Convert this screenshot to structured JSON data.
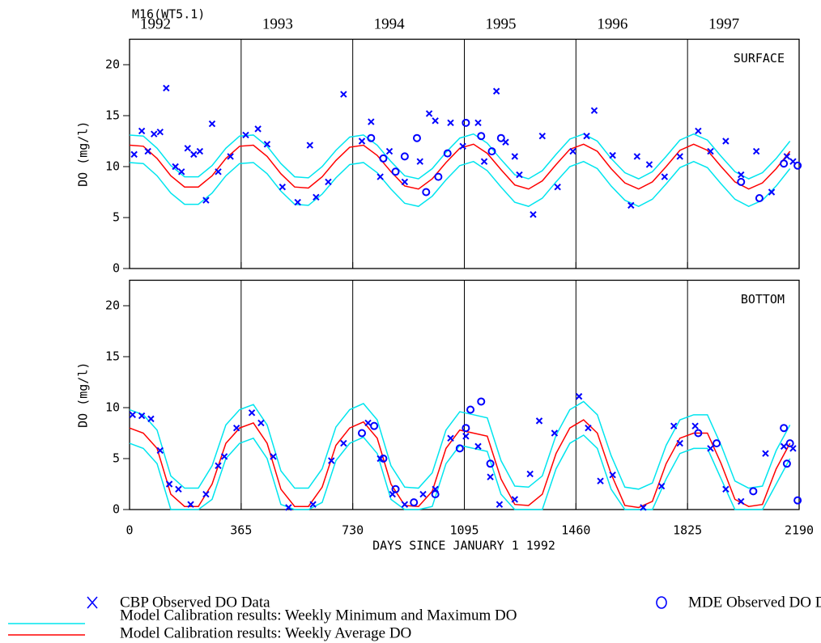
{
  "title": "M16(WT5.1)",
  "year_labels": [
    "1992",
    "1993",
    "1994",
    "1995",
    "1996",
    "1997"
  ],
  "x_label": "DAYS SINCE JANUARY 1 1992",
  "chart_data": [
    {
      "type": "line",
      "panel_label": "SURFACE",
      "y_label": "DO (mg/l)",
      "xlim": [
        0,
        2190
      ],
      "ylim": [
        0,
        22.5
      ],
      "yticks": [
        0,
        5,
        10,
        15,
        20
      ],
      "x": [
        0,
        45,
        90,
        135,
        180,
        225,
        270,
        315,
        360,
        405,
        450,
        495,
        540,
        585,
        630,
        675,
        720,
        765,
        810,
        855,
        900,
        945,
        990,
        1035,
        1080,
        1125,
        1170,
        1215,
        1260,
        1305,
        1350,
        1395,
        1440,
        1485,
        1530,
        1575,
        1620,
        1665,
        1710,
        1755,
        1800,
        1845,
        1890,
        1935,
        1980,
        2025,
        2070,
        2115,
        2160
      ],
      "series": [
        {
          "name": "Model Calibration results: Weekly Minimum and Maximum DO",
          "color": "#00e5ee",
          "values": [
            10.4,
            10.3,
            9.1,
            7.4,
            6.3,
            6.3,
            7.4,
            9.1,
            10.3,
            10.4,
            9.3,
            7.6,
            6.3,
            6.2,
            7.3,
            8.9,
            10.2,
            10.4,
            9.4,
            7.8,
            6.4,
            6.1,
            7.1,
            8.7,
            10.1,
            10.5,
            9.6,
            8.0,
            6.5,
            6.1,
            6.9,
            8.5,
            10.0,
            10.5,
            9.8,
            8.1,
            6.7,
            6.1,
            6.8,
            8.3,
            9.9,
            10.5,
            9.9,
            8.3,
            6.8,
            6.1,
            6.7,
            8.1,
            9.8
          ]
        },
        {
          "color": "#00e5ee",
          "values": [
            13.1,
            13.0,
            11.8,
            10.1,
            9.0,
            9.0,
            10.1,
            11.8,
            13.0,
            13.1,
            12.0,
            10.3,
            9.0,
            8.9,
            10.0,
            11.6,
            12.9,
            13.1,
            12.1,
            10.5,
            9.1,
            8.8,
            9.8,
            11.4,
            12.8,
            13.2,
            12.3,
            10.7,
            9.2,
            8.8,
            9.6,
            11.2,
            12.7,
            13.2,
            12.5,
            10.8,
            9.4,
            8.8,
            9.5,
            11.0,
            12.6,
            13.2,
            12.6,
            11.0,
            9.5,
            8.8,
            9.4,
            10.8,
            12.5
          ]
        },
        {
          "name": "Model Calibration results: Weekly Average DO",
          "color": "#ff0000",
          "values": [
            12.1,
            12.0,
            10.8,
            9.1,
            8.0,
            8.0,
            9.1,
            10.8,
            12.0,
            12.1,
            11.0,
            9.3,
            8.0,
            7.9,
            9.0,
            10.6,
            11.9,
            12.1,
            11.1,
            9.5,
            8.1,
            7.8,
            8.8,
            10.4,
            11.8,
            12.2,
            11.3,
            9.7,
            8.2,
            7.8,
            8.6,
            10.2,
            11.7,
            12.2,
            11.5,
            9.8,
            8.4,
            7.8,
            8.5,
            10.0,
            11.6,
            12.2,
            11.6,
            10.0,
            8.5,
            7.8,
            8.4,
            9.8,
            11.5
          ]
        },
        {
          "name": "CBP Observed DO Data",
          "color": "#0000ff",
          "marker": "x",
          "x": [
            15,
            40,
            60,
            80,
            100,
            120,
            150,
            170,
            190,
            210,
            230,
            250,
            270,
            290,
            330,
            380,
            420,
            450,
            500,
            550,
            590,
            610,
            650,
            700,
            760,
            790,
            820,
            850,
            900,
            950,
            980,
            1000,
            1050,
            1090,
            1140,
            1160,
            1200,
            1230,
            1260,
            1275,
            1320,
            1350,
            1400,
            1450,
            1495,
            1520,
            1580,
            1640,
            1660,
            1700,
            1750,
            1800,
            1860,
            1900,
            1950,
            2000,
            2050,
            2100,
            2150,
            2170
          ],
          "values": [
            11.2,
            13.5,
            11.5,
            13.2,
            13.4,
            17.7,
            10,
            9.5,
            11.8,
            11.2,
            11.5,
            6.7,
            14.2,
            9.5,
            11,
            13.1,
            13.7,
            12.2,
            8,
            6.5,
            12.1,
            7,
            8.5,
            17.1,
            12.5,
            14.4,
            9,
            11.5,
            8.5,
            10.5,
            15.2,
            14.5,
            14.3,
            12,
            14.3,
            10.5,
            17.4,
            12.4,
            11,
            9.2,
            5.3,
            13,
            8,
            11.5,
            13,
            15.5,
            11.1,
            6.2,
            11,
            10.2,
            9,
            11,
            13.5,
            11.5,
            12.5,
            9.2,
            11.5,
            7.5,
            11,
            10.5
          ]
        },
        {
          "name": "MDE Observed DO Data",
          "color": "#0000ff",
          "marker": "o",
          "x": [
            790,
            830,
            870,
            900,
            940,
            970,
            1010,
            1040,
            1100,
            1150,
            1185,
            1215,
            2000,
            2060,
            2140,
            2185
          ],
          "values": [
            12.8,
            10.8,
            9.5,
            11,
            12.8,
            7.5,
            9,
            11.3,
            14.3,
            13,
            11.5,
            12.8,
            8.5,
            6.9,
            10.3,
            10.1
          ]
        }
      ]
    },
    {
      "type": "line",
      "panel_label": "BOTTOM",
      "y_label": "DO (mg/l)",
      "xlim": [
        0,
        2190
      ],
      "ylim": [
        0,
        22.5
      ],
      "yticks": [
        0,
        5,
        10,
        15,
        20
      ],
      "xticks": [
        0,
        365,
        730,
        1095,
        1460,
        1825,
        2190
      ],
      "x": [
        0,
        45,
        90,
        135,
        180,
        225,
        270,
        315,
        360,
        405,
        450,
        495,
        540,
        585,
        630,
        675,
        720,
        765,
        810,
        855,
        900,
        945,
        990,
        1035,
        1080,
        1125,
        1170,
        1215,
        1260,
        1305,
        1350,
        1395,
        1440,
        1485,
        1530,
        1575,
        1620,
        1665,
        1710,
        1755,
        1800,
        1845,
        1890,
        1935,
        1980,
        2025,
        2070,
        2115,
        2160
      ],
      "series": [
        {
          "color": "#00e5ee",
          "values": [
            6.5,
            6.0,
            4.5,
            0,
            0,
            0,
            1.0,
            5.0,
            6.5,
            7.0,
            5.0,
            0.5,
            0,
            0,
            0.7,
            4.8,
            6.5,
            7.1,
            5.5,
            1.0,
            0,
            0,
            0.3,
            4.5,
            6.3,
            6.0,
            5.7,
            1.5,
            0,
            0,
            0,
            4.0,
            6.5,
            7.3,
            6.0,
            2.0,
            0,
            0,
            0,
            3.0,
            5.5,
            6.0,
            6.0,
            3.0,
            0,
            0,
            0,
            2.5,
            5.0
          ]
        },
        {
          "color": "#00e5ee",
          "values": [
            9.8,
            9.3,
            7.8,
            3.3,
            2.1,
            2.1,
            4.3,
            8.3,
            9.8,
            10.3,
            8.3,
            3.8,
            2.1,
            2.1,
            4.0,
            8.1,
            9.8,
            10.4,
            8.8,
            4.3,
            2.2,
            2.1,
            3.6,
            7.8,
            9.6,
            9.3,
            9.0,
            4.8,
            2.3,
            2.2,
            3.3,
            7.3,
            9.8,
            10.6,
            9.3,
            5.3,
            2.2,
            2.0,
            2.6,
            6.3,
            8.8,
            9.3,
            9.3,
            6.3,
            2.8,
            2.1,
            2.3,
            5.8,
            8.3
          ]
        },
        {
          "color": "#ff0000",
          "values": [
            8.0,
            7.5,
            6.0,
            1.5,
            0.3,
            0.3,
            2.5,
            6.5,
            8.0,
            8.5,
            6.5,
            2.0,
            0.3,
            0.3,
            2.2,
            6.3,
            8.0,
            8.6,
            7.0,
            2.5,
            0.4,
            0.3,
            1.8,
            6.0,
            7.8,
            7.5,
            7.2,
            3.0,
            0.5,
            0.4,
            1.5,
            5.5,
            8.0,
            8.8,
            7.5,
            3.5,
            0.4,
            0.2,
            0.8,
            4.5,
            7.0,
            7.5,
            7.5,
            4.5,
            1.0,
            0.3,
            0.5,
            4.0,
            6.5
          ]
        },
        {
          "color": "#0000ff",
          "marker": "x",
          "x": [
            10,
            40,
            70,
            100,
            130,
            160,
            200,
            250,
            290,
            310,
            350,
            400,
            430,
            470,
            520,
            600,
            660,
            700,
            780,
            820,
            860,
            900,
            960,
            1000,
            1050,
            1100,
            1140,
            1180,
            1210,
            1260,
            1310,
            1340,
            1390,
            1470,
            1500,
            1540,
            1580,
            1680,
            1740,
            1780,
            1800,
            1850,
            1900,
            1950,
            2000,
            2080,
            2140,
            2170
          ],
          "values": [
            9.3,
            9.2,
            8.9,
            5.8,
            2.5,
            2,
            0.5,
            1.5,
            4.3,
            5.2,
            8,
            9.5,
            8.5,
            5.2,
            0.2,
            0.5,
            4.8,
            6.5,
            8.5,
            5,
            1.5,
            0.5,
            1.5,
            2,
            7,
            7.2,
            6.2,
            3.2,
            0.5,
            1,
            3.5,
            8.7,
            7.5,
            11.1,
            8,
            2.8,
            3.4,
            0.2,
            2.3,
            8.2,
            6.5,
            8.2,
            6,
            2,
            0.8,
            5.5,
            6.2,
            6
          ]
        },
        {
          "color": "#0000ff",
          "marker": "o",
          "x": [
            760,
            800,
            830,
            870,
            930,
            1000,
            1080,
            1100,
            1115,
            1150,
            1180,
            1860,
            1920,
            2040,
            2140,
            2150,
            2160,
            2185
          ],
          "values": [
            7.5,
            8.2,
            5,
            2,
            0.7,
            1.5,
            6,
            8,
            9.8,
            10.6,
            4.5,
            7.5,
            6.5,
            1.8,
            8,
            4.5,
            6.5,
            0.9
          ]
        }
      ]
    }
  ]
}
